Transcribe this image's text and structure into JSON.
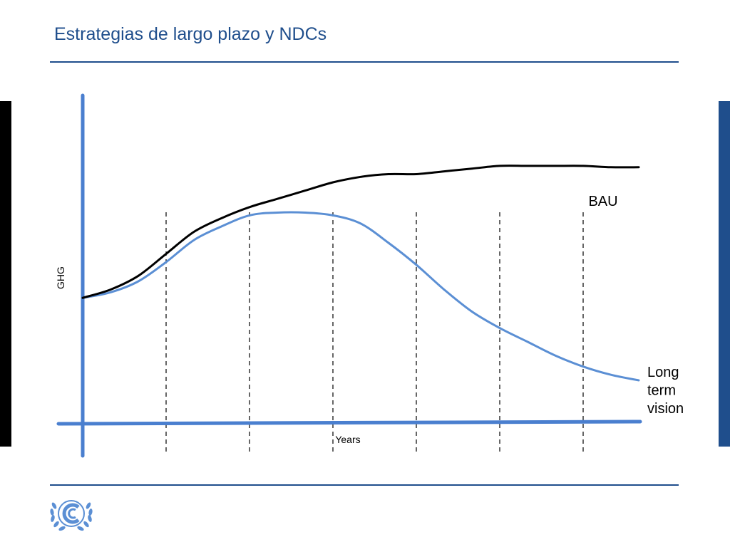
{
  "slide": {
    "title": "Estrategias de largo plazo y NDCs"
  },
  "colors": {
    "title": "#1f4e8c",
    "rule": "#1f4e8c",
    "axis": "#4a7fcf",
    "bau": "#000000",
    "long_term": "#5b8fd4",
    "left_bar": "#000000",
    "right_bar": "#1f4e8c"
  },
  "chart_data": {
    "type": "line",
    "title": "",
    "xlabel": "Years",
    "ylabel": "GHG",
    "xlim": [
      0,
      100
    ],
    "ylim": [
      0,
      100
    ],
    "grid": false,
    "vertical_dashed_markers": [
      15,
      30,
      45,
      60,
      75,
      90
    ],
    "series": [
      {
        "name": "BAU",
        "color": "#000000",
        "x": [
          0,
          5,
          10,
          15,
          20,
          25,
          30,
          35,
          40,
          45,
          50,
          55,
          60,
          65,
          70,
          75,
          80,
          85,
          90,
          95,
          100
        ],
        "y": [
          44,
          47,
          52,
          60,
          68,
          73,
          77,
          80,
          83,
          86,
          88,
          89,
          89,
          90,
          91,
          92,
          92,
          92,
          92,
          91.5,
          91.5
        ]
      },
      {
        "name": "Long term vision",
        "color": "#5b8fd4",
        "x": [
          0,
          5,
          10,
          15,
          20,
          25,
          30,
          35,
          40,
          45,
          50,
          55,
          60,
          65,
          70,
          75,
          80,
          85,
          90,
          95,
          100
        ],
        "y": [
          44,
          46,
          50,
          57,
          65,
          70,
          74,
          75,
          75,
          74,
          71,
          64,
          56,
          47,
          39,
          33,
          28,
          23,
          19,
          16,
          14
        ]
      }
    ]
  }
}
